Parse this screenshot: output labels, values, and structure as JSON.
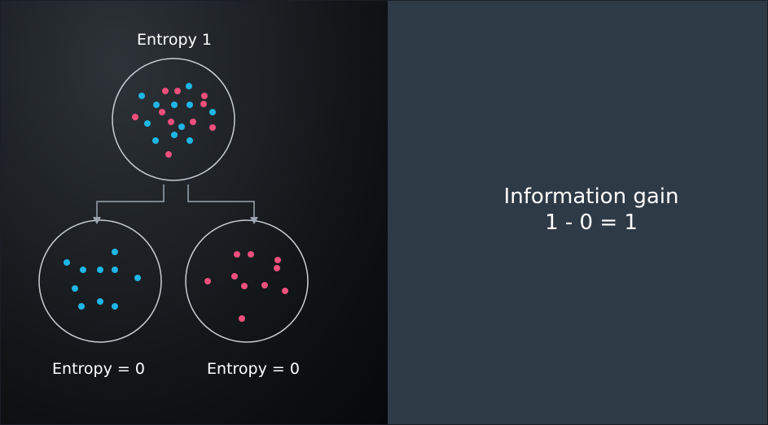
{
  "labels": {
    "root": "Entropy 1",
    "left_child": "Entropy = 0",
    "right_child": "Entropy = 0"
  },
  "gain": {
    "title": "Information gain",
    "formula": "1 - 0 = 1"
  },
  "colors": {
    "blue": "#1fb6e6",
    "pink": "#ef4f7d",
    "circle_stroke": "#c9ced3",
    "arrow": "#9aa5b1",
    "right_panel": "#2f3a47"
  }
}
